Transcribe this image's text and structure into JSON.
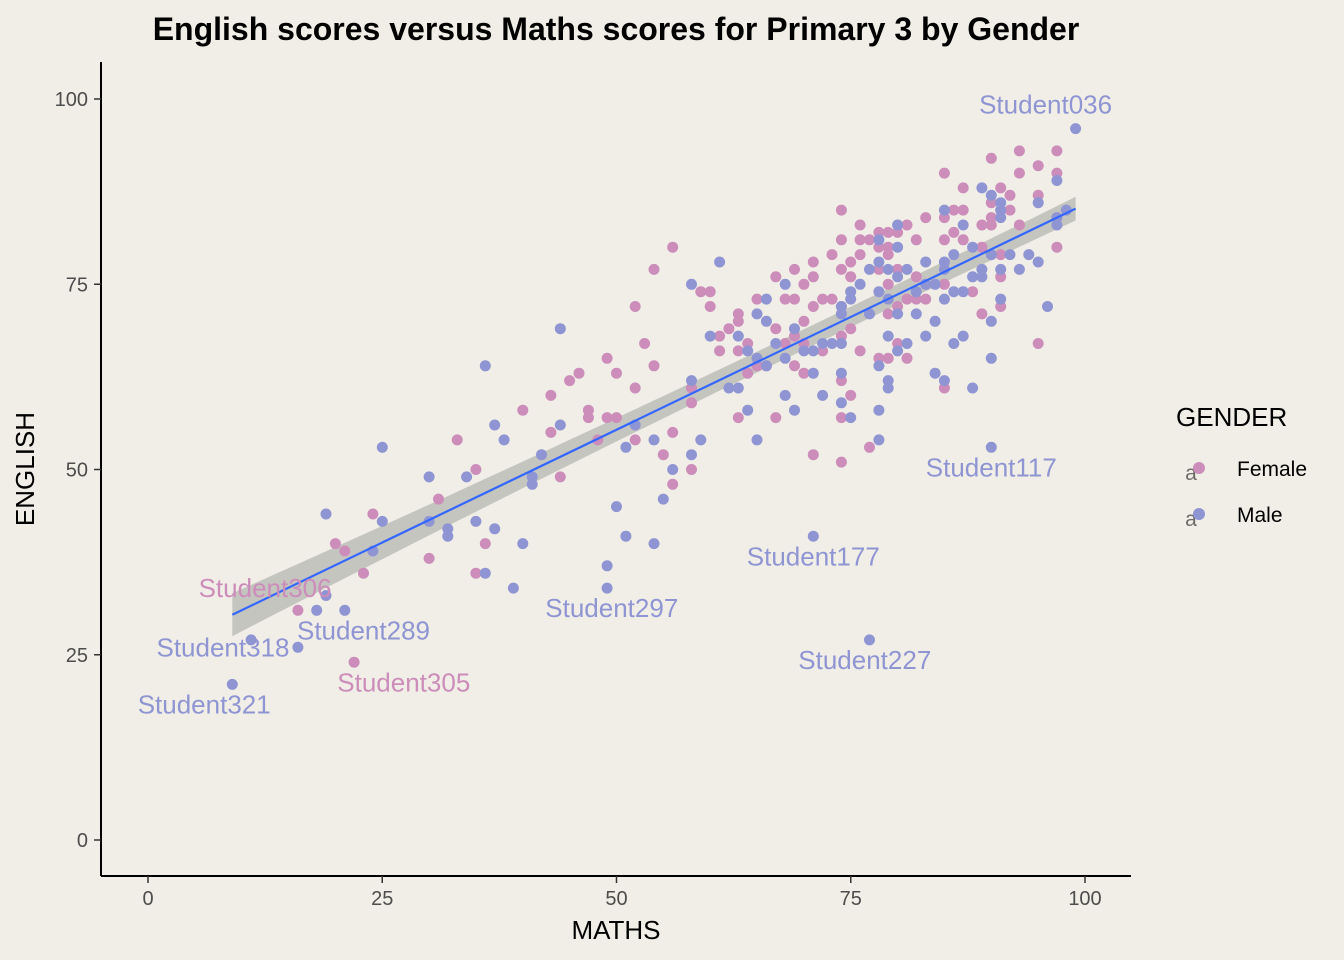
{
  "colors": {
    "background": "#F0EEE6",
    "female": "#CC8DBB",
    "male": "#8F95D3",
    "regression_line": "#3366FF",
    "confidence_band": "#BDBDB7"
  },
  "chart_data": {
    "type": "scatter",
    "title": "English scores versus Maths scores for Primary 3 by Gender",
    "xlabel": "MATHS",
    "ylabel": "ENGLISH",
    "xlim": [
      -5,
      105
    ],
    "ylim": [
      -5,
      105
    ],
    "xticks": [
      0,
      25,
      50,
      75,
      100
    ],
    "yticks": [
      0,
      25,
      50,
      75,
      100
    ],
    "grid": false,
    "legend": {
      "title": "GENDER",
      "position": "right",
      "entries": [
        "Female",
        "Male"
      ]
    },
    "regression": {
      "x_range": [
        9,
        99
      ],
      "y_start": 30.4,
      "y_end": 85.2,
      "se_start": 2.9,
      "se_mid": 0.8,
      "se_end": 1.6
    },
    "series": [
      {
        "name": "Female",
        "points": [
          [
            16,
            31
          ],
          [
            20,
            40
          ],
          [
            21,
            39
          ],
          [
            23,
            36
          ],
          [
            24,
            44
          ],
          [
            22,
            24
          ],
          [
            30,
            38
          ],
          [
            31,
            46
          ],
          [
            33,
            54
          ],
          [
            35,
            50
          ],
          [
            35,
            36
          ],
          [
            36,
            40
          ],
          [
            40,
            58
          ],
          [
            43,
            55
          ],
          [
            43,
            60
          ],
          [
            44,
            49
          ],
          [
            45,
            62
          ],
          [
            46,
            63
          ],
          [
            47,
            57
          ],
          [
            47,
            58
          ],
          [
            48,
            54
          ],
          [
            49,
            65
          ],
          [
            49,
            57
          ],
          [
            50,
            63
          ],
          [
            50,
            57
          ],
          [
            52,
            72
          ],
          [
            52,
            61
          ],
          [
            52,
            54
          ],
          [
            53,
            67
          ],
          [
            54,
            64
          ],
          [
            54,
            77
          ],
          [
            55,
            52
          ],
          [
            56,
            80
          ],
          [
            56,
            55
          ],
          [
            56,
            48
          ],
          [
            58,
            59
          ],
          [
            58,
            50
          ],
          [
            58,
            61
          ],
          [
            59,
            74
          ],
          [
            60,
            74
          ],
          [
            60,
            72
          ],
          [
            61,
            68
          ],
          [
            61,
            66
          ],
          [
            62,
            69
          ],
          [
            63,
            71
          ],
          [
            63,
            70
          ],
          [
            63,
            66
          ],
          [
            63,
            57
          ],
          [
            64,
            67
          ],
          [
            64,
            63
          ],
          [
            65,
            73
          ],
          [
            65,
            64
          ],
          [
            66,
            64
          ],
          [
            67,
            76
          ],
          [
            67,
            69
          ],
          [
            67,
            57
          ],
          [
            68,
            73
          ],
          [
            68,
            67
          ],
          [
            69,
            77
          ],
          [
            69,
            73
          ],
          [
            69,
            68
          ],
          [
            69,
            64
          ],
          [
            70,
            75
          ],
          [
            70,
            70
          ],
          [
            70,
            63
          ],
          [
            70,
            67
          ],
          [
            71,
            78
          ],
          [
            71,
            76
          ],
          [
            71,
            72
          ],
          [
            71,
            52
          ],
          [
            72,
            73
          ],
          [
            72,
            66
          ],
          [
            73,
            79
          ],
          [
            73,
            73
          ],
          [
            74,
            85
          ],
          [
            74,
            81
          ],
          [
            74,
            77
          ],
          [
            74,
            72
          ],
          [
            74,
            68
          ],
          [
            74,
            62
          ],
          [
            74,
            57
          ],
          [
            74,
            51
          ],
          [
            75,
            78
          ],
          [
            75,
            76
          ],
          [
            75,
            69
          ],
          [
            75,
            60
          ],
          [
            76,
            83
          ],
          [
            76,
            81
          ],
          [
            76,
            79
          ],
          [
            76,
            66
          ],
          [
            77,
            53
          ],
          [
            77,
            81
          ],
          [
            78,
            80
          ],
          [
            78,
            77
          ],
          [
            78,
            65
          ],
          [
            78,
            82
          ],
          [
            79,
            82
          ],
          [
            79,
            80
          ],
          [
            79,
            75
          ],
          [
            79,
            71
          ],
          [
            79,
            65
          ],
          [
            79,
            79
          ],
          [
            80,
            82
          ],
          [
            80,
            77
          ],
          [
            80,
            72
          ],
          [
            80,
            67
          ],
          [
            81,
            83
          ],
          [
            81,
            73
          ],
          [
            81,
            65
          ],
          [
            82,
            81
          ],
          [
            82,
            76
          ],
          [
            82,
            73
          ],
          [
            83,
            84
          ],
          [
            83,
            75
          ],
          [
            83,
            73
          ],
          [
            85,
            90
          ],
          [
            85,
            84
          ],
          [
            85,
            81
          ],
          [
            85,
            75
          ],
          [
            85,
            61
          ],
          [
            86,
            85
          ],
          [
            86,
            82
          ],
          [
            87,
            88
          ],
          [
            87,
            85
          ],
          [
            87,
            81
          ],
          [
            88,
            74
          ],
          [
            89,
            83
          ],
          [
            89,
            80
          ],
          [
            89,
            71
          ],
          [
            90,
            92
          ],
          [
            90,
            86
          ],
          [
            90,
            84
          ],
          [
            90,
            83
          ],
          [
            90,
            79
          ],
          [
            91,
            88
          ],
          [
            91,
            85
          ],
          [
            91,
            79
          ],
          [
            91,
            76
          ],
          [
            91,
            72
          ],
          [
            92,
            87
          ],
          [
            92,
            85
          ],
          [
            93,
            93
          ],
          [
            93,
            90
          ],
          [
            93,
            83
          ],
          [
            95,
            91
          ],
          [
            95,
            87
          ],
          [
            95,
            67
          ],
          [
            97,
            93
          ],
          [
            97,
            90
          ],
          [
            97,
            84
          ],
          [
            97,
            80
          ]
        ]
      },
      {
        "name": "Male",
        "points": [
          [
            9,
            21
          ],
          [
            11,
            27
          ],
          [
            16,
            26
          ],
          [
            18,
            31
          ],
          [
            19,
            33
          ],
          [
            19,
            44
          ],
          [
            21,
            31
          ],
          [
            24,
            39
          ],
          [
            25,
            53
          ],
          [
            25,
            43
          ],
          [
            30,
            49
          ],
          [
            30,
            43
          ],
          [
            32,
            41
          ],
          [
            32,
            42
          ],
          [
            34,
            49
          ],
          [
            35,
            43
          ],
          [
            36,
            64
          ],
          [
            36,
            36
          ],
          [
            37,
            56
          ],
          [
            37,
            42
          ],
          [
            38,
            54
          ],
          [
            39,
            34
          ],
          [
            40,
            40
          ],
          [
            41,
            48
          ],
          [
            41,
            49
          ],
          [
            42,
            52
          ],
          [
            44,
            69
          ],
          [
            44,
            56
          ],
          [
            49,
            37
          ],
          [
            49,
            34
          ],
          [
            50,
            45
          ],
          [
            51,
            53
          ],
          [
            51,
            41
          ],
          [
            52,
            56
          ],
          [
            54,
            54
          ],
          [
            54,
            40
          ],
          [
            55,
            46
          ],
          [
            56,
            50
          ],
          [
            58,
            75
          ],
          [
            58,
            62
          ],
          [
            58,
            52
          ],
          [
            59,
            54
          ],
          [
            60,
            68
          ],
          [
            61,
            78
          ],
          [
            62,
            61
          ],
          [
            63,
            61
          ],
          [
            63,
            68
          ],
          [
            64,
            58
          ],
          [
            64,
            66
          ],
          [
            65,
            71
          ],
          [
            65,
            65
          ],
          [
            65,
            54
          ],
          [
            66,
            73
          ],
          [
            66,
            70
          ],
          [
            66,
            64
          ],
          [
            67,
            67
          ],
          [
            68,
            75
          ],
          [
            68,
            65
          ],
          [
            68,
            60
          ],
          [
            69,
            69
          ],
          [
            69,
            58
          ],
          [
            70,
            66
          ],
          [
            71,
            66
          ],
          [
            71,
            63
          ],
          [
            71,
            41
          ],
          [
            72,
            67
          ],
          [
            72,
            60
          ],
          [
            73,
            67
          ],
          [
            74,
            72
          ],
          [
            74,
            71
          ],
          [
            74,
            67
          ],
          [
            74,
            63
          ],
          [
            74,
            59
          ],
          [
            75,
            74
          ],
          [
            75,
            73
          ],
          [
            75,
            57
          ],
          [
            76,
            75
          ],
          [
            77,
            77
          ],
          [
            77,
            71
          ],
          [
            77,
            27
          ],
          [
            78,
            81
          ],
          [
            78,
            78
          ],
          [
            78,
            74
          ],
          [
            78,
            58
          ],
          [
            78,
            54
          ],
          [
            78,
            64
          ],
          [
            79,
            77
          ],
          [
            79,
            73
          ],
          [
            79,
            68
          ],
          [
            79,
            62
          ],
          [
            79,
            61
          ],
          [
            80,
            83
          ],
          [
            80,
            80
          ],
          [
            80,
            76
          ],
          [
            80,
            71
          ],
          [
            80,
            66
          ],
          [
            81,
            67
          ],
          [
            81,
            77
          ],
          [
            82,
            71
          ],
          [
            82,
            74
          ],
          [
            83,
            78
          ],
          [
            83,
            75
          ],
          [
            83,
            68
          ],
          [
            84,
            75
          ],
          [
            84,
            70
          ],
          [
            84,
            63
          ],
          [
            85,
            85
          ],
          [
            85,
            78
          ],
          [
            85,
            77
          ],
          [
            85,
            73
          ],
          [
            85,
            62
          ],
          [
            86,
            79
          ],
          [
            86,
            74
          ],
          [
            86,
            67
          ],
          [
            87,
            83
          ],
          [
            87,
            74
          ],
          [
            87,
            68
          ],
          [
            88,
            80
          ],
          [
            88,
            76
          ],
          [
            88,
            61
          ],
          [
            89,
            88
          ],
          [
            89,
            77
          ],
          [
            89,
            76
          ],
          [
            90,
            87
          ],
          [
            90,
            79
          ],
          [
            90,
            70
          ],
          [
            90,
            65
          ],
          [
            90,
            53
          ],
          [
            91,
            86
          ],
          [
            91,
            85
          ],
          [
            91,
            84
          ],
          [
            91,
            77
          ],
          [
            91,
            73
          ],
          [
            92,
            79
          ],
          [
            93,
            77
          ],
          [
            94,
            79
          ],
          [
            95,
            86
          ],
          [
            95,
            78
          ],
          [
            96,
            72
          ],
          [
            97,
            89
          ],
          [
            97,
            84
          ],
          [
            97,
            83
          ],
          [
            98,
            85
          ],
          [
            99,
            96
          ]
        ]
      }
    ],
    "annotations": [
      {
        "text": "Student036",
        "x": 99,
        "y": 96,
        "series": "Male",
        "dx": -3.2,
        "dy": 3
      },
      {
        "text": "Student117",
        "x": 90,
        "y": 53,
        "series": "Male",
        "dx": 0,
        "dy": -3
      },
      {
        "text": "Student177",
        "x": 71,
        "y": 41,
        "series": "Male",
        "dx": 0,
        "dy": -3
      },
      {
        "text": "Student297",
        "x": 49,
        "y": 34,
        "series": "Male",
        "dx": 0.5,
        "dy": -3
      },
      {
        "text": "Student227",
        "x": 77,
        "y": 27,
        "series": "Male",
        "dx": -0.5,
        "dy": -3
      },
      {
        "text": "Student306",
        "x": 16,
        "y": 31,
        "series": "Female",
        "dx": -3.5,
        "dy": 2.7
      },
      {
        "text": "Student289",
        "x": 18,
        "y": 31,
        "series": "Male",
        "dx": 5,
        "dy": -3
      },
      {
        "text": "Student318",
        "x": 11,
        "y": 27,
        "series": "Male",
        "dx": -3,
        "dy": -1.3
      },
      {
        "text": "Student321",
        "x": 9,
        "y": 21,
        "series": "Male",
        "dx": -3,
        "dy": -3
      },
      {
        "text": "Student305",
        "x": 22,
        "y": 24,
        "series": "Female",
        "dx": 5.3,
        "dy": -3
      }
    ]
  }
}
